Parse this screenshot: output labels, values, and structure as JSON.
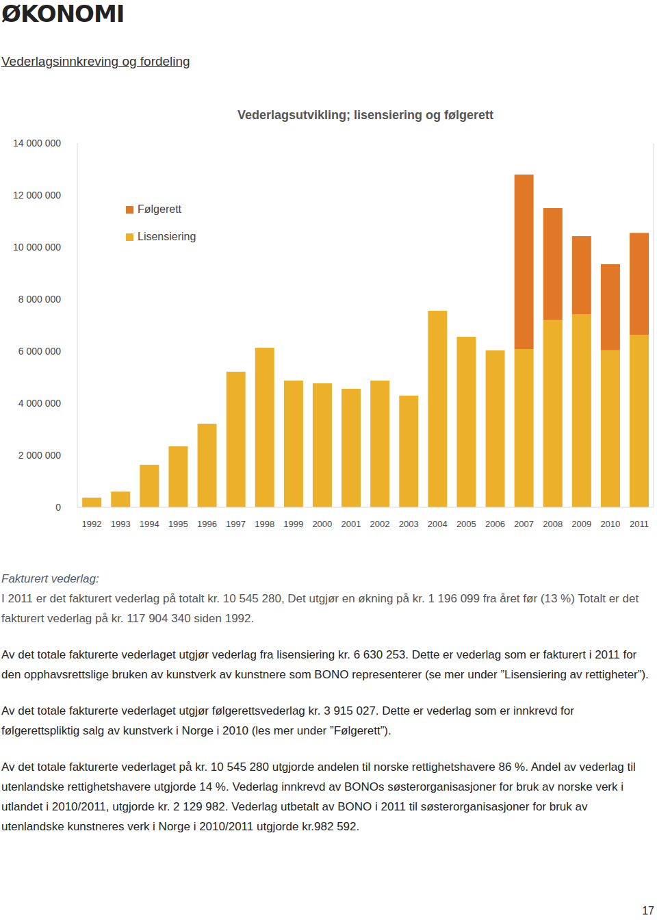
{
  "heading": "ØKONOMI",
  "section": "Vederlagsinnkreving og fordeling",
  "chart_data": {
    "type": "bar",
    "title": "Vederlagsutvikling; lisensiering og følgerett",
    "categories": [
      "1992",
      "1993",
      "1994",
      "1995",
      "1996",
      "1997",
      "1998",
      "1999",
      "2000",
      "2001",
      "2002",
      "2003",
      "2004",
      "2005",
      "2006",
      "2007",
      "2008",
      "2009",
      "2010",
      "2011"
    ],
    "series": [
      {
        "name": "Lisensiering",
        "color": "#EDB02A",
        "values": [
          370000,
          600000,
          1630000,
          2340000,
          3210000,
          5210000,
          6130000,
          4870000,
          4760000,
          4550000,
          4870000,
          4290000,
          7550000,
          6550000,
          6030000,
          6080000,
          7210000,
          7420000,
          6030000,
          6630253
        ]
      },
      {
        "name": "Følgerett",
        "color": "#E07828",
        "values": [
          null,
          null,
          null,
          null,
          null,
          null,
          null,
          null,
          null,
          null,
          null,
          null,
          null,
          null,
          null,
          6710000,
          4290000,
          3000000,
          3310000,
          3915027
        ]
      }
    ],
    "ylim": [
      0,
      14000000
    ],
    "yticks": [
      0,
      {
        "value": 2000000,
        "label": "2 000 000"
      },
      {
        "value": 4000000,
        "label": "4 000 000"
      },
      {
        "value": 6000000,
        "label": "6 000 000"
      },
      {
        "value": 8000000,
        "label": "8 000 000"
      },
      {
        "value": 10000000,
        "label": "10 000 000"
      },
      {
        "value": 12000000,
        "label": "12 000 000"
      },
      {
        "value": 14000000,
        "label": "14 000 000"
      }
    ],
    "stacked": true,
    "legend": "top-left",
    "grid": false
  },
  "subheading": "Fakturert vederlag:",
  "paragraphs": [
    "I 2011 er det fakturert vederlag på totalt kr. 10 545 280, Det utgjør en økning på kr. 1 196 099 fra året før (13 %) Totalt er det fakturert vederlag på kr. 117 904 340 siden 1992.",
    "Av det totale fakturerte vederlaget utgjør vederlag fra lisensiering kr. 6 630 253. Dette er vederlag som er fakturert i 2011 for den opphavsrettslige bruken av kunstverk av kunstnere som BONO representerer (se mer under ”Lisensiering av rettigheter”).",
    "Av det totale fakturerte vederlaget utgjør følgerettsvederlag kr. 3 915 027. Dette er vederlag som er innkrevd for følgerettspliktig salg av kunstverk i Norge i 2010 (les mer under ”Følgerett”).",
    "Av det totale fakturerte vederlaget på kr.  10 545 280 utgjorde andelen til norske rettighetshavere 86 %. Andel av vederlag til utenlandske rettighetshavere utgjorde 14 %.  Vederlag innkrevd av BONOs søsterorganisasjoner for bruk av norske verk i utlandet i 2010/2011, utgjorde kr. 2 129 982. Vederlag utbetalt av BONO i 2011 til søsterorganisasjoner for bruk av utenlandske kunstneres verk i Norge i 2010/2011 utgjorde kr.982 592."
  ],
  "page_number": "17"
}
